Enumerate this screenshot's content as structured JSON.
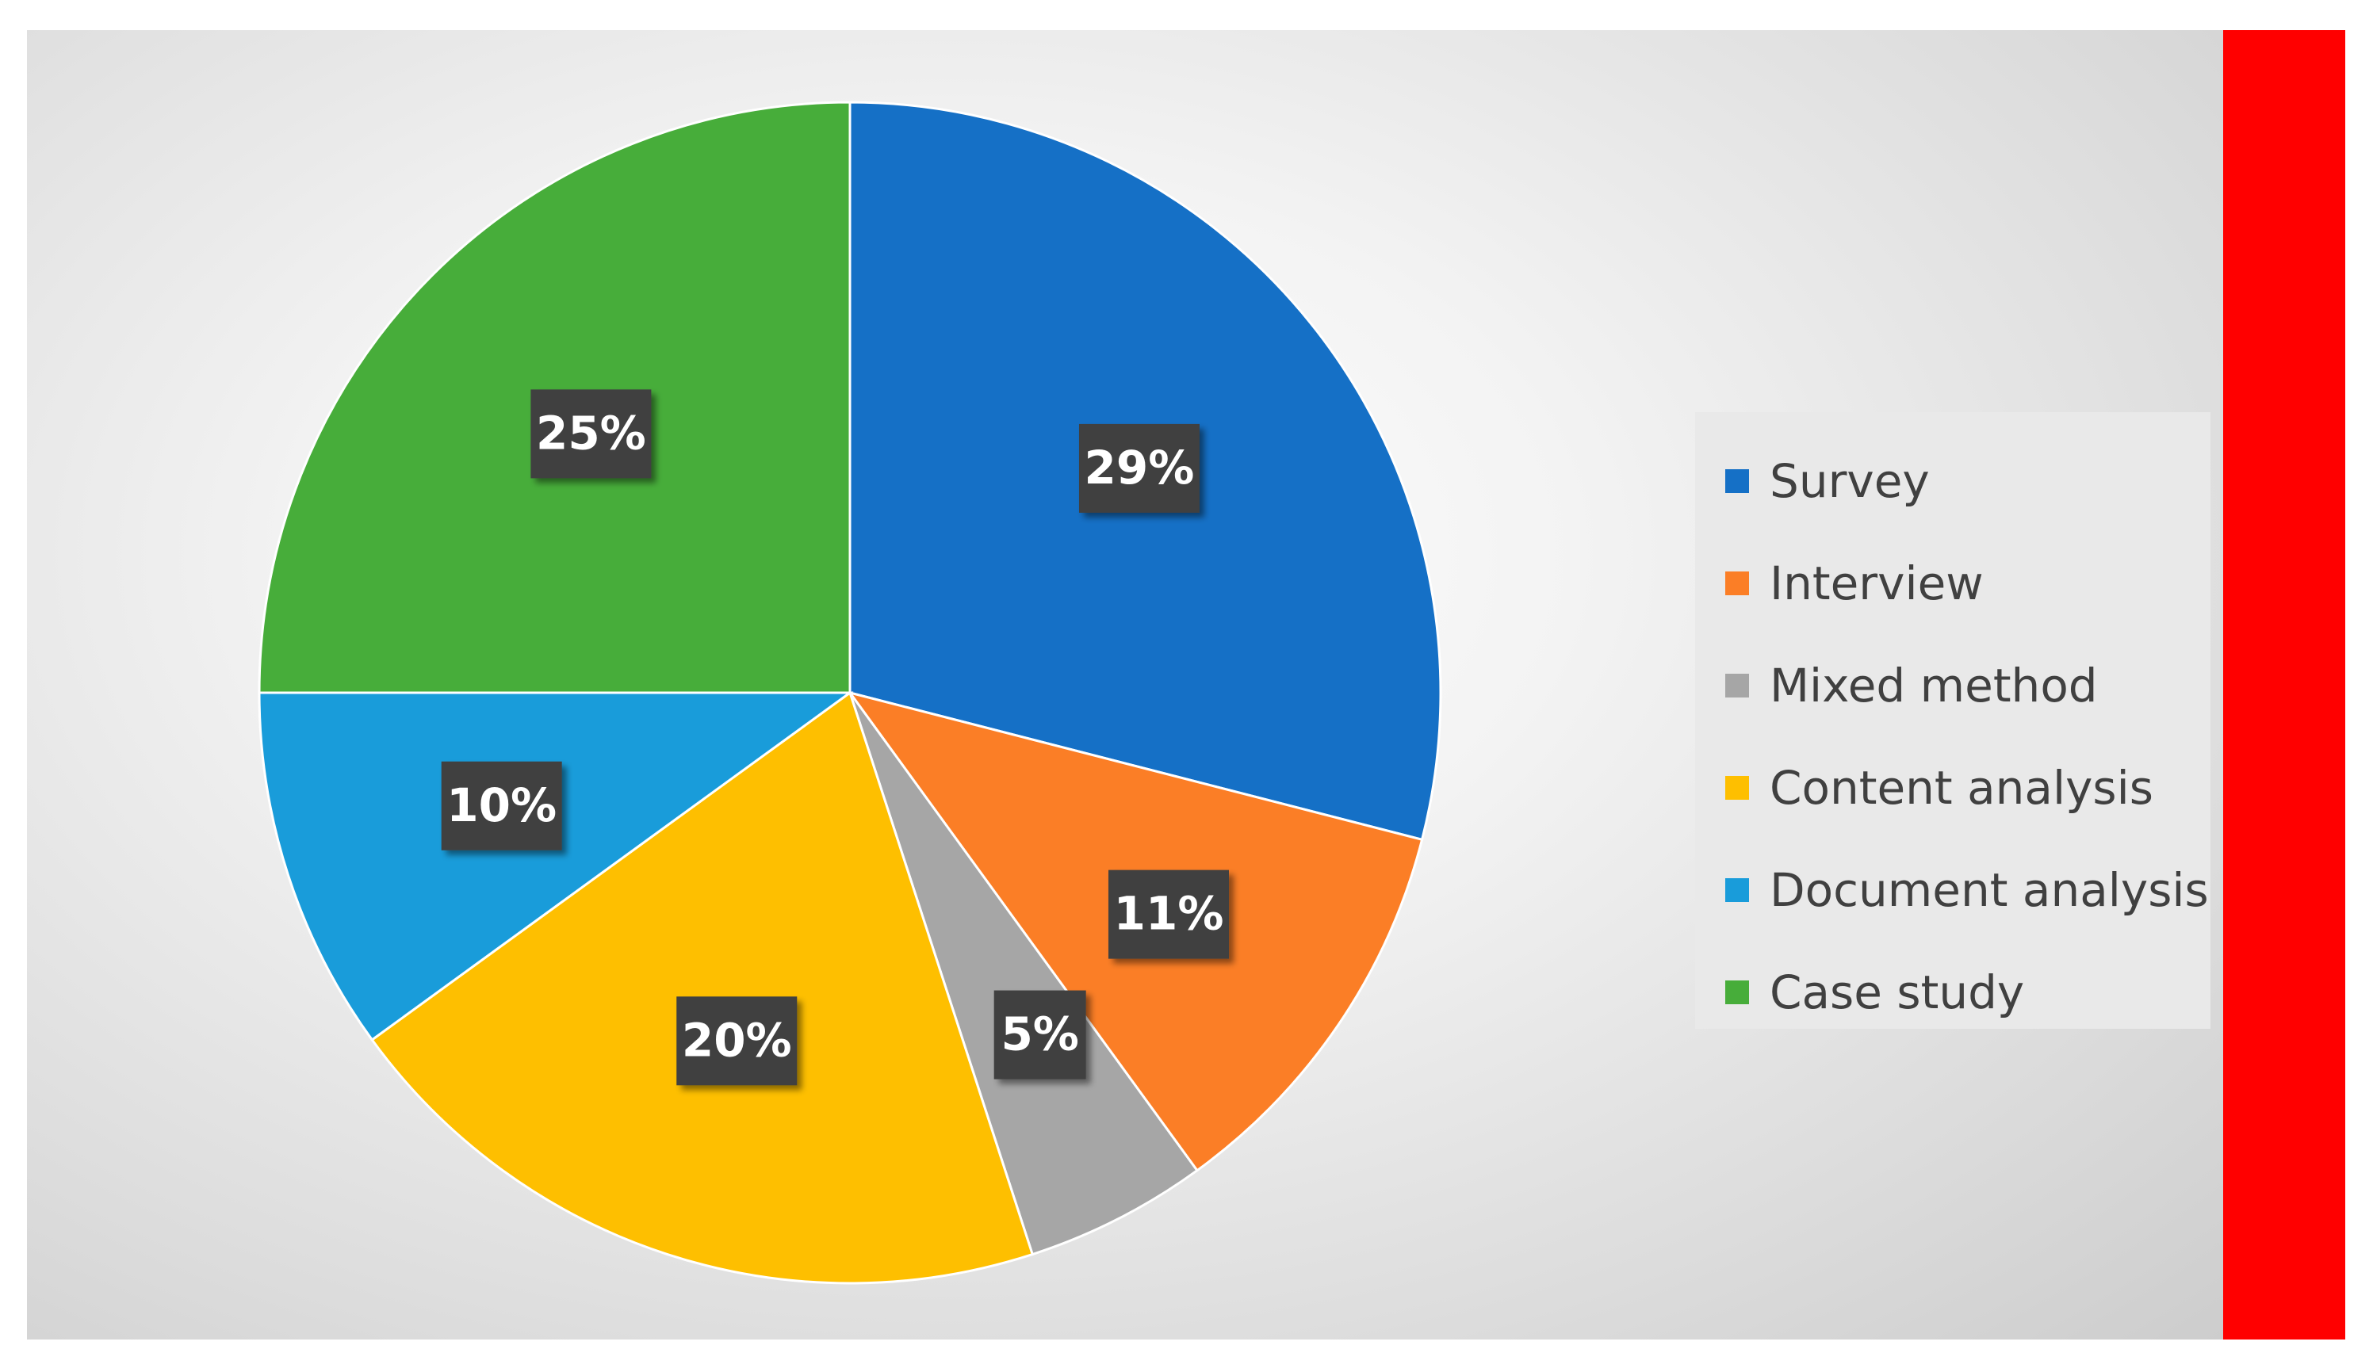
{
  "chart_data": {
    "type": "pie",
    "title": "",
    "start_angle_deg": 0,
    "direction": "clockwise",
    "legend_position": "right",
    "categories": [
      "Survey",
      "Interview",
      "Mixed method",
      "Content analysis",
      "Document analysis",
      "Case study"
    ],
    "values": [
      29,
      11,
      5,
      20,
      10,
      25
    ],
    "data_labels": [
      "29%",
      "11%",
      "5%",
      "20%",
      "10%",
      "25%"
    ],
    "colors": [
      "#1570C6",
      "#FB7E26",
      "#A6A6A6",
      "#FEBF00",
      "#199CDA",
      "#47AD3A"
    ]
  },
  "side_bar_color": "#FF0000"
}
